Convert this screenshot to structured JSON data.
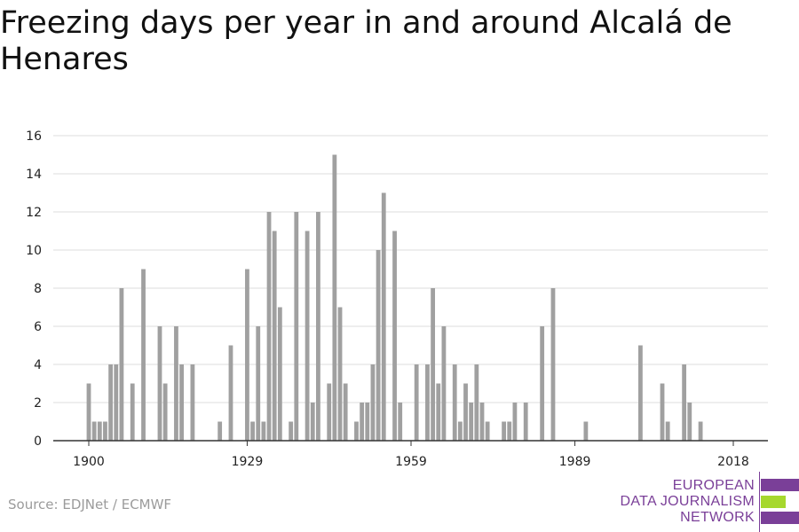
{
  "title": "Freezing days per year in and around Alcalá de Henares",
  "source": "Source: EDJNet / ECMWF",
  "logo": {
    "line1": "EUROPEAN",
    "line2": "DATA JOURNALISM",
    "line3": "NETWORK",
    "colors": [
      "#7a3f98",
      "#a6d82e",
      "#7a3f98"
    ]
  },
  "chart_data": {
    "type": "bar",
    "title": "Freezing days per year in and around Alcalá de Henares",
    "xlabel": "",
    "ylabel": "",
    "ylim": [
      0,
      16
    ],
    "yticks": [
      0,
      2,
      4,
      6,
      8,
      10,
      12,
      14,
      16
    ],
    "xticks": [
      1900,
      1929,
      1959,
      1989,
      2018
    ],
    "grid": true,
    "bar_color": "#a0a0a0",
    "x": [
      1900,
      1901,
      1902,
      1903,
      1904,
      1905,
      1906,
      1907,
      1908,
      1909,
      1910,
      1911,
      1912,
      1913,
      1914,
      1915,
      1916,
      1917,
      1918,
      1919,
      1920,
      1921,
      1922,
      1923,
      1924,
      1925,
      1926,
      1927,
      1928,
      1929,
      1930,
      1931,
      1932,
      1933,
      1934,
      1935,
      1936,
      1937,
      1938,
      1939,
      1940,
      1941,
      1942,
      1943,
      1944,
      1945,
      1946,
      1947,
      1948,
      1949,
      1950,
      1951,
      1952,
      1953,
      1954,
      1955,
      1956,
      1957,
      1958,
      1959,
      1960,
      1961,
      1962,
      1963,
      1964,
      1965,
      1966,
      1967,
      1968,
      1969,
      1970,
      1971,
      1972,
      1973,
      1974,
      1975,
      1976,
      1977,
      1978,
      1979,
      1980,
      1981,
      1982,
      1983,
      1984,
      1985,
      1986,
      1987,
      1988,
      1989,
      1990,
      1991,
      1992,
      1993,
      1994,
      1995,
      1996,
      1997,
      1998,
      1999,
      2000,
      2001,
      2002,
      2003,
      2004,
      2005,
      2006,
      2007,
      2008,
      2009,
      2010,
      2011,
      2012,
      2013,
      2014,
      2015,
      2016,
      2017,
      2018
    ],
    "values": [
      3,
      1,
      1,
      1,
      4,
      4,
      8,
      0,
      3,
      0,
      9,
      0,
      0,
      6,
      3,
      0,
      6,
      4,
      0,
      4,
      0,
      0,
      0,
      0,
      1,
      0,
      5,
      0,
      0,
      9,
      1,
      6,
      1,
      12,
      11,
      7,
      0,
      1,
      12,
      0,
      11,
      2,
      12,
      0,
      3,
      15,
      7,
      3,
      0,
      1,
      2,
      2,
      4,
      10,
      13,
      0,
      11,
      2,
      0,
      0,
      4,
      0,
      4,
      8,
      3,
      6,
      0,
      4,
      1,
      3,
      2,
      4,
      2,
      1,
      0,
      0,
      1,
      1,
      2,
      0,
      2,
      0,
      0,
      6,
      0,
      8,
      0,
      0,
      0,
      0,
      0,
      1,
      0,
      0,
      0,
      0,
      0,
      0,
      0,
      0,
      0,
      5,
      0,
      0,
      0,
      3,
      1,
      0,
      0,
      4,
      2,
      0,
      1,
      0,
      0,
      0,
      0,
      0,
      0
    ]
  }
}
